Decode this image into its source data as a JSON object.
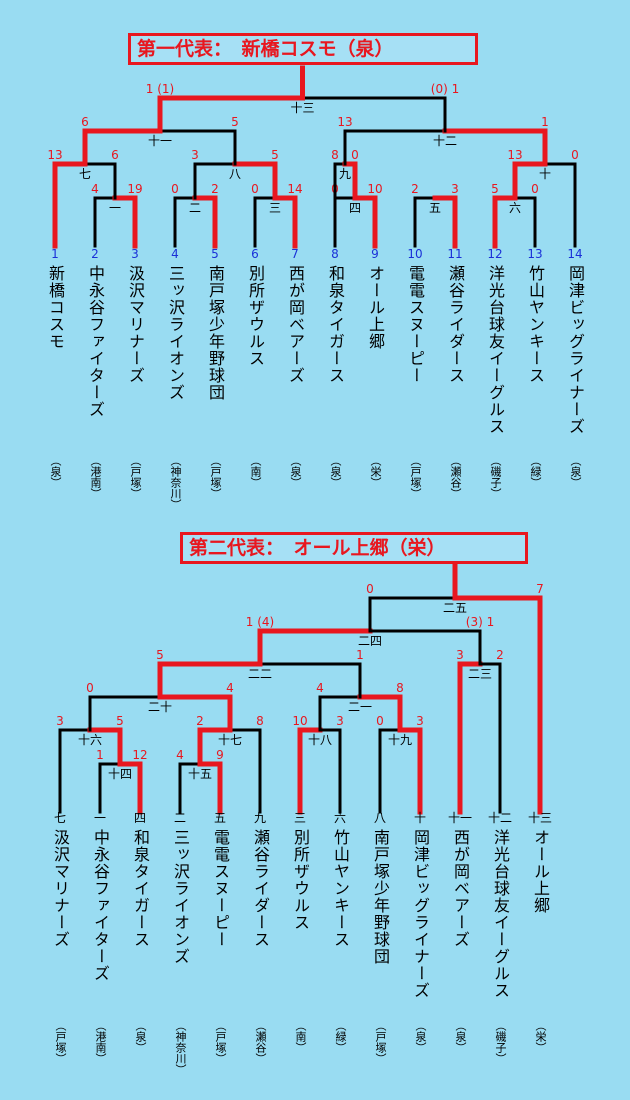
{
  "colors": {
    "background": "#99dcf2",
    "winner": "#e8171f",
    "line": "#000000",
    "team_number": "#1a30d8",
    "score": "#e8171f"
  },
  "bracket1": {
    "title": "第一代表：　新橋コスモ（泉）",
    "teams": [
      {
        "num": "1",
        "name": "新橋コスモ",
        "area": "（泉）"
      },
      {
        "num": "2",
        "name": "中永谷ファイターズ",
        "area": "（港南）"
      },
      {
        "num": "3",
        "name": "汲沢マリナーズ",
        "area": "（戸塚）"
      },
      {
        "num": "4",
        "name": "三ッ沢ライオンズ",
        "area": "（神奈川）"
      },
      {
        "num": "5",
        "name": "南戸塚少年野球団",
        "area": "（戸塚）"
      },
      {
        "num": "6",
        "name": "別所ザウルス",
        "area": "（南）"
      },
      {
        "num": "7",
        "name": "西が岡ベアーズ",
        "area": "（泉）"
      },
      {
        "num": "8",
        "name": "和泉タイガース",
        "area": "（泉）"
      },
      {
        "num": "9",
        "name": "オール上郷",
        "area": "（栄）"
      },
      {
        "num": "10",
        "name": "電電スヌーピー",
        "area": "（戸塚）"
      },
      {
        "num": "11",
        "name": "瀬谷ライダース",
        "area": "（瀬谷）"
      },
      {
        "num": "12",
        "name": "洋光台球友イーグルス",
        "area": "（磯子）"
      },
      {
        "num": "13",
        "name": "竹山ヤンキース",
        "area": "（緑）"
      },
      {
        "num": "14",
        "name": "岡津ビッグライナーズ",
        "area": "（泉）"
      }
    ],
    "games": [
      {
        "no": "一",
        "scores": [
          "4",
          "19"
        ]
      },
      {
        "no": "二",
        "scores": [
          "0",
          "2"
        ]
      },
      {
        "no": "三",
        "scores": [
          "0",
          "14"
        ]
      },
      {
        "no": "四",
        "scores": [
          "0",
          "10"
        ]
      },
      {
        "no": "五",
        "scores": [
          "2",
          "3"
        ]
      },
      {
        "no": "六",
        "scores": [
          "5",
          "0"
        ]
      },
      {
        "no": "七",
        "scores": [
          "13",
          "6"
        ]
      },
      {
        "no": "八",
        "scores": [
          "3",
          "5"
        ]
      },
      {
        "no": "九",
        "scores": [
          "8",
          "0"
        ]
      },
      {
        "no": "十",
        "scores": [
          "13",
          "0"
        ]
      },
      {
        "no": "十一",
        "scores": [
          "6",
          "5"
        ]
      },
      {
        "no": "十二",
        "scores": [
          "13",
          "1"
        ]
      },
      {
        "no": "十三",
        "scores": [
          "1 (1)",
          "(0) 1"
        ]
      }
    ]
  },
  "bracket2": {
    "title": "第二代表：　オール上郷（栄）",
    "teams": [
      {
        "num": "七",
        "name": "汲沢マリナーズ",
        "area": "（戸塚）"
      },
      {
        "num": "一",
        "name": "中永谷ファイターズ",
        "area": "（港南）"
      },
      {
        "num": "四",
        "name": "和泉タイガース",
        "area": "（泉）"
      },
      {
        "num": "二",
        "name": "三ッ沢ライオンズ",
        "area": "（神奈川）"
      },
      {
        "num": "五",
        "name": "電電スヌーピー",
        "area": "（戸塚）"
      },
      {
        "num": "九",
        "name": "瀬谷ライダース",
        "area": "（瀬谷）"
      },
      {
        "num": "三",
        "name": "別所ザウルス",
        "area": "（南）"
      },
      {
        "num": "六",
        "name": "竹山ヤンキース",
        "area": "（緑）"
      },
      {
        "num": "八",
        "name": "南戸塚少年野球団",
        "area": "（戸塚）"
      },
      {
        "num": "十",
        "name": "岡津ビッグライナーズ",
        "area": "（泉）"
      },
      {
        "num": "十一",
        "name": "西が岡ベアーズ",
        "area": "（泉）"
      },
      {
        "num": "十二",
        "name": "洋光台球友イーグルス",
        "area": "（磯子）"
      },
      {
        "num": "十三",
        "name": "オール上郷",
        "area": "（栄）"
      }
    ],
    "games": [
      {
        "no": "十四",
        "scores": [
          "1",
          "12"
        ]
      },
      {
        "no": "十五",
        "scores": [
          "4",
          "9"
        ]
      },
      {
        "no": "十六",
        "scores": [
          "3",
          "5"
        ]
      },
      {
        "no": "十七",
        "scores": [
          "2",
          "8"
        ]
      },
      {
        "no": "十八",
        "scores": [
          "10",
          "3"
        ]
      },
      {
        "no": "十九",
        "scores": [
          "0",
          "3"
        ]
      },
      {
        "no": "二十",
        "scores": [
          "0",
          "4"
        ]
      },
      {
        "no": "二一",
        "scores": [
          "4",
          "8"
        ]
      },
      {
        "no": "二二",
        "scores": [
          "5",
          "1"
        ]
      },
      {
        "no": "二三",
        "scores": [
          "3",
          "2"
        ]
      },
      {
        "no": "二四",
        "scores": [
          "1 (4)",
          "(3) 1"
        ]
      },
      {
        "no": "二五",
        "scores": [
          "0",
          "7"
        ]
      }
    ]
  }
}
